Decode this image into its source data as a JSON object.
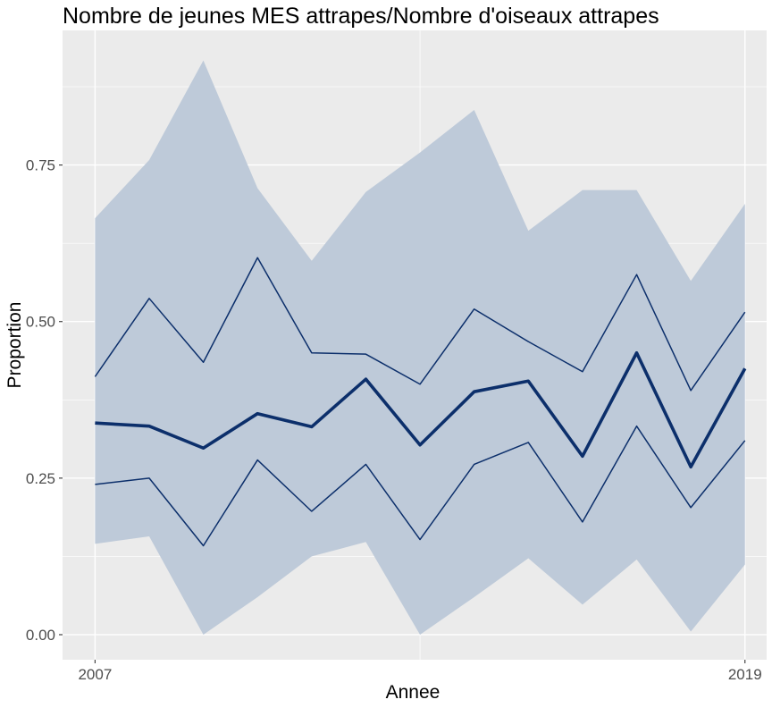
{
  "chart_data": {
    "type": "line",
    "title": "Nombre de jeunes MES attrapes/Nombre d'oiseaux attrapes",
    "xlabel": "Annee",
    "ylabel": "Proportion",
    "x": [
      2007,
      2008,
      2009,
      2010,
      2011,
      2012,
      2013,
      2014,
      2015,
      2016,
      2017,
      2018,
      2019
    ],
    "x_tick_values": [
      2007,
      2019
    ],
    "x_tick_labels": [
      "2007",
      "2019"
    ],
    "y_tick_values": [
      0,
      0.25,
      0.5,
      0.75
    ],
    "y_tick_labels": [
      "0.00",
      "0.25",
      "0.50",
      "0.75"
    ],
    "xlim": [
      2006.4,
      2019.4
    ],
    "ylim": [
      -0.04,
      0.965
    ],
    "grid": true,
    "colors": {
      "panel_background": "#ebebeb",
      "grid": "#ffffff",
      "ribbon": "#becad9",
      "line": "#0c2f6b"
    },
    "series": [
      {
        "role": "ribbon",
        "lower": [
          0.145,
          0.157,
          0.0,
          0.06,
          0.125,
          0.148,
          0.0,
          0.06,
          0.122,
          0.048,
          0.12,
          0.005,
          0.112
        ],
        "upper": [
          0.665,
          0.758,
          0.917,
          0.713,
          0.597,
          0.707,
          0.77,
          0.838,
          0.645,
          0.71,
          0.71,
          0.565,
          0.688
        ]
      },
      {
        "role": "upper-line",
        "values": [
          0.412,
          0.537,
          0.435,
          0.602,
          0.45,
          0.448,
          0.4,
          0.52,
          0.468,
          0.42,
          0.575,
          0.39,
          0.515
        ]
      },
      {
        "role": "mean-line",
        "values": [
          0.338,
          0.333,
          0.298,
          0.353,
          0.332,
          0.408,
          0.303,
          0.388,
          0.405,
          0.285,
          0.45,
          0.268,
          0.425
        ]
      },
      {
        "role": "lower-line",
        "values": [
          0.24,
          0.25,
          0.142,
          0.279,
          0.197,
          0.272,
          0.152,
          0.272,
          0.307,
          0.18,
          0.333,
          0.203,
          0.31
        ]
      }
    ]
  }
}
